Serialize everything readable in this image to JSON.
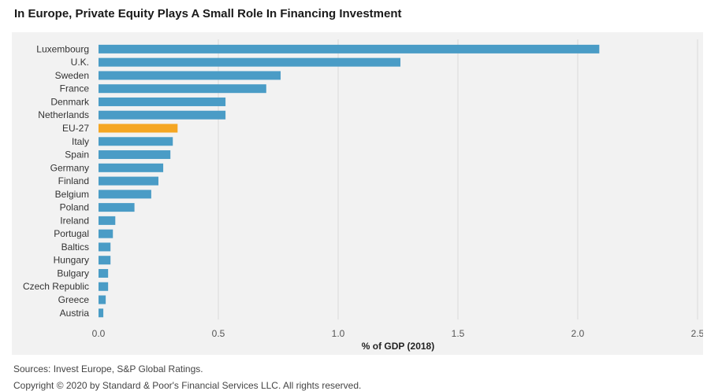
{
  "title": "In Europe, Private Equity Plays A Small Role In Financing Investment",
  "source": "Sources: Invest Europe, S&P Global Ratings.",
  "copyright": "Copyright © 2020 by Standard & Poor's Financial Services LLC. All rights reserved.",
  "colors": {
    "bar": "#4a9cc6",
    "highlight": "#f5a623",
    "grid": "#d9d9d9",
    "background": "#f2f2f2"
  },
  "chart_data": {
    "type": "bar",
    "orientation": "horizontal",
    "title": "In Europe, Private Equity Plays A Small Role In Financing Investment",
    "xlabel": "% of GDP (2018)",
    "ylabel": "",
    "xlim": [
      0,
      2.5
    ],
    "ticks": [
      "0.0",
      "0.5",
      "1.0",
      "1.5",
      "2.0",
      "2.5"
    ],
    "grid": true,
    "highlight": "EU-27",
    "categories": [
      "Luxembourg",
      "U.K.",
      "Sweden",
      "France",
      "Denmark",
      "Netherlands",
      "EU-27",
      "Italy",
      "Spain",
      "Germany",
      "Finland",
      "Belgium",
      "Poland",
      "Ireland",
      "Portugal",
      "Baltics",
      "Hungary",
      "Bulgary",
      "Czech Republic",
      "Greece",
      "Austria"
    ],
    "values": [
      2.09,
      1.26,
      0.76,
      0.7,
      0.53,
      0.53,
      0.33,
      0.31,
      0.3,
      0.27,
      0.25,
      0.22,
      0.15,
      0.07,
      0.06,
      0.05,
      0.05,
      0.04,
      0.04,
      0.03,
      0.02
    ]
  }
}
